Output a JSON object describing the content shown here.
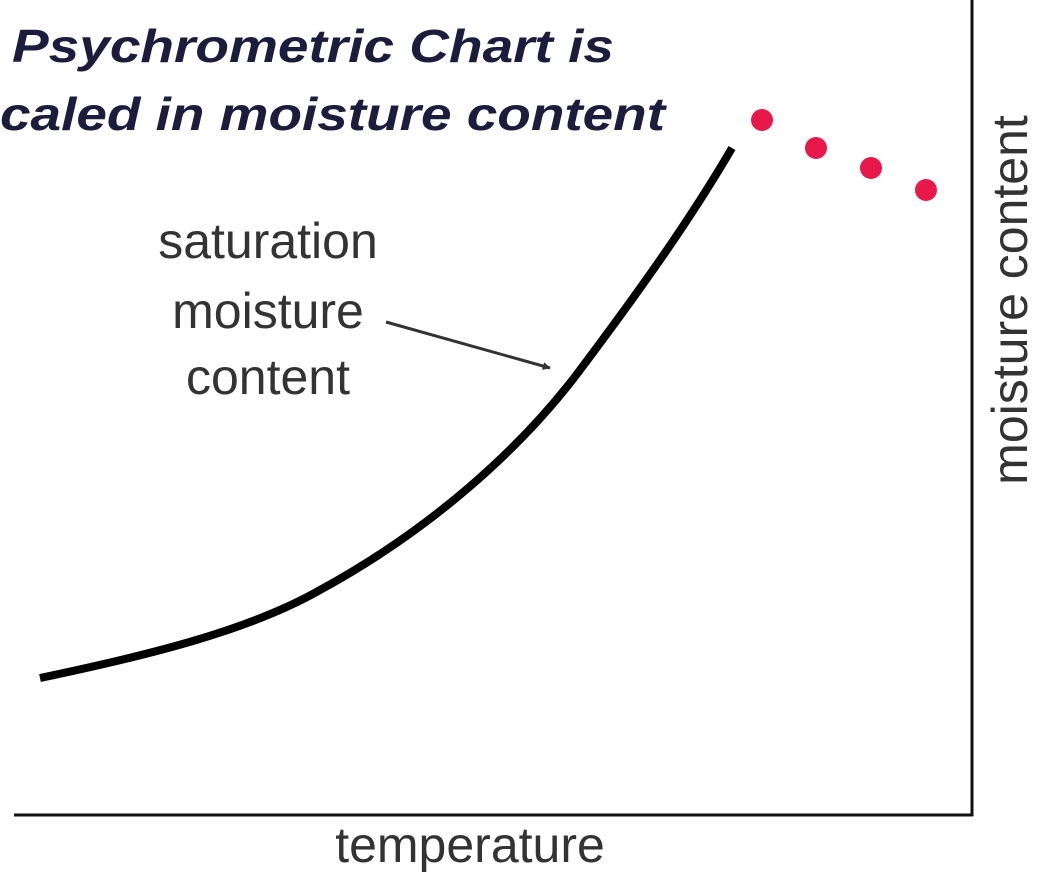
{
  "title": {
    "line1": "Psychrometric Chart is",
    "line2": "caled in moisture content"
  },
  "annotation": {
    "lines": [
      "saturation",
      "moisture",
      "content"
    ]
  },
  "x_axis_label": "temperature",
  "y_axis_label": "moisture content"
}
